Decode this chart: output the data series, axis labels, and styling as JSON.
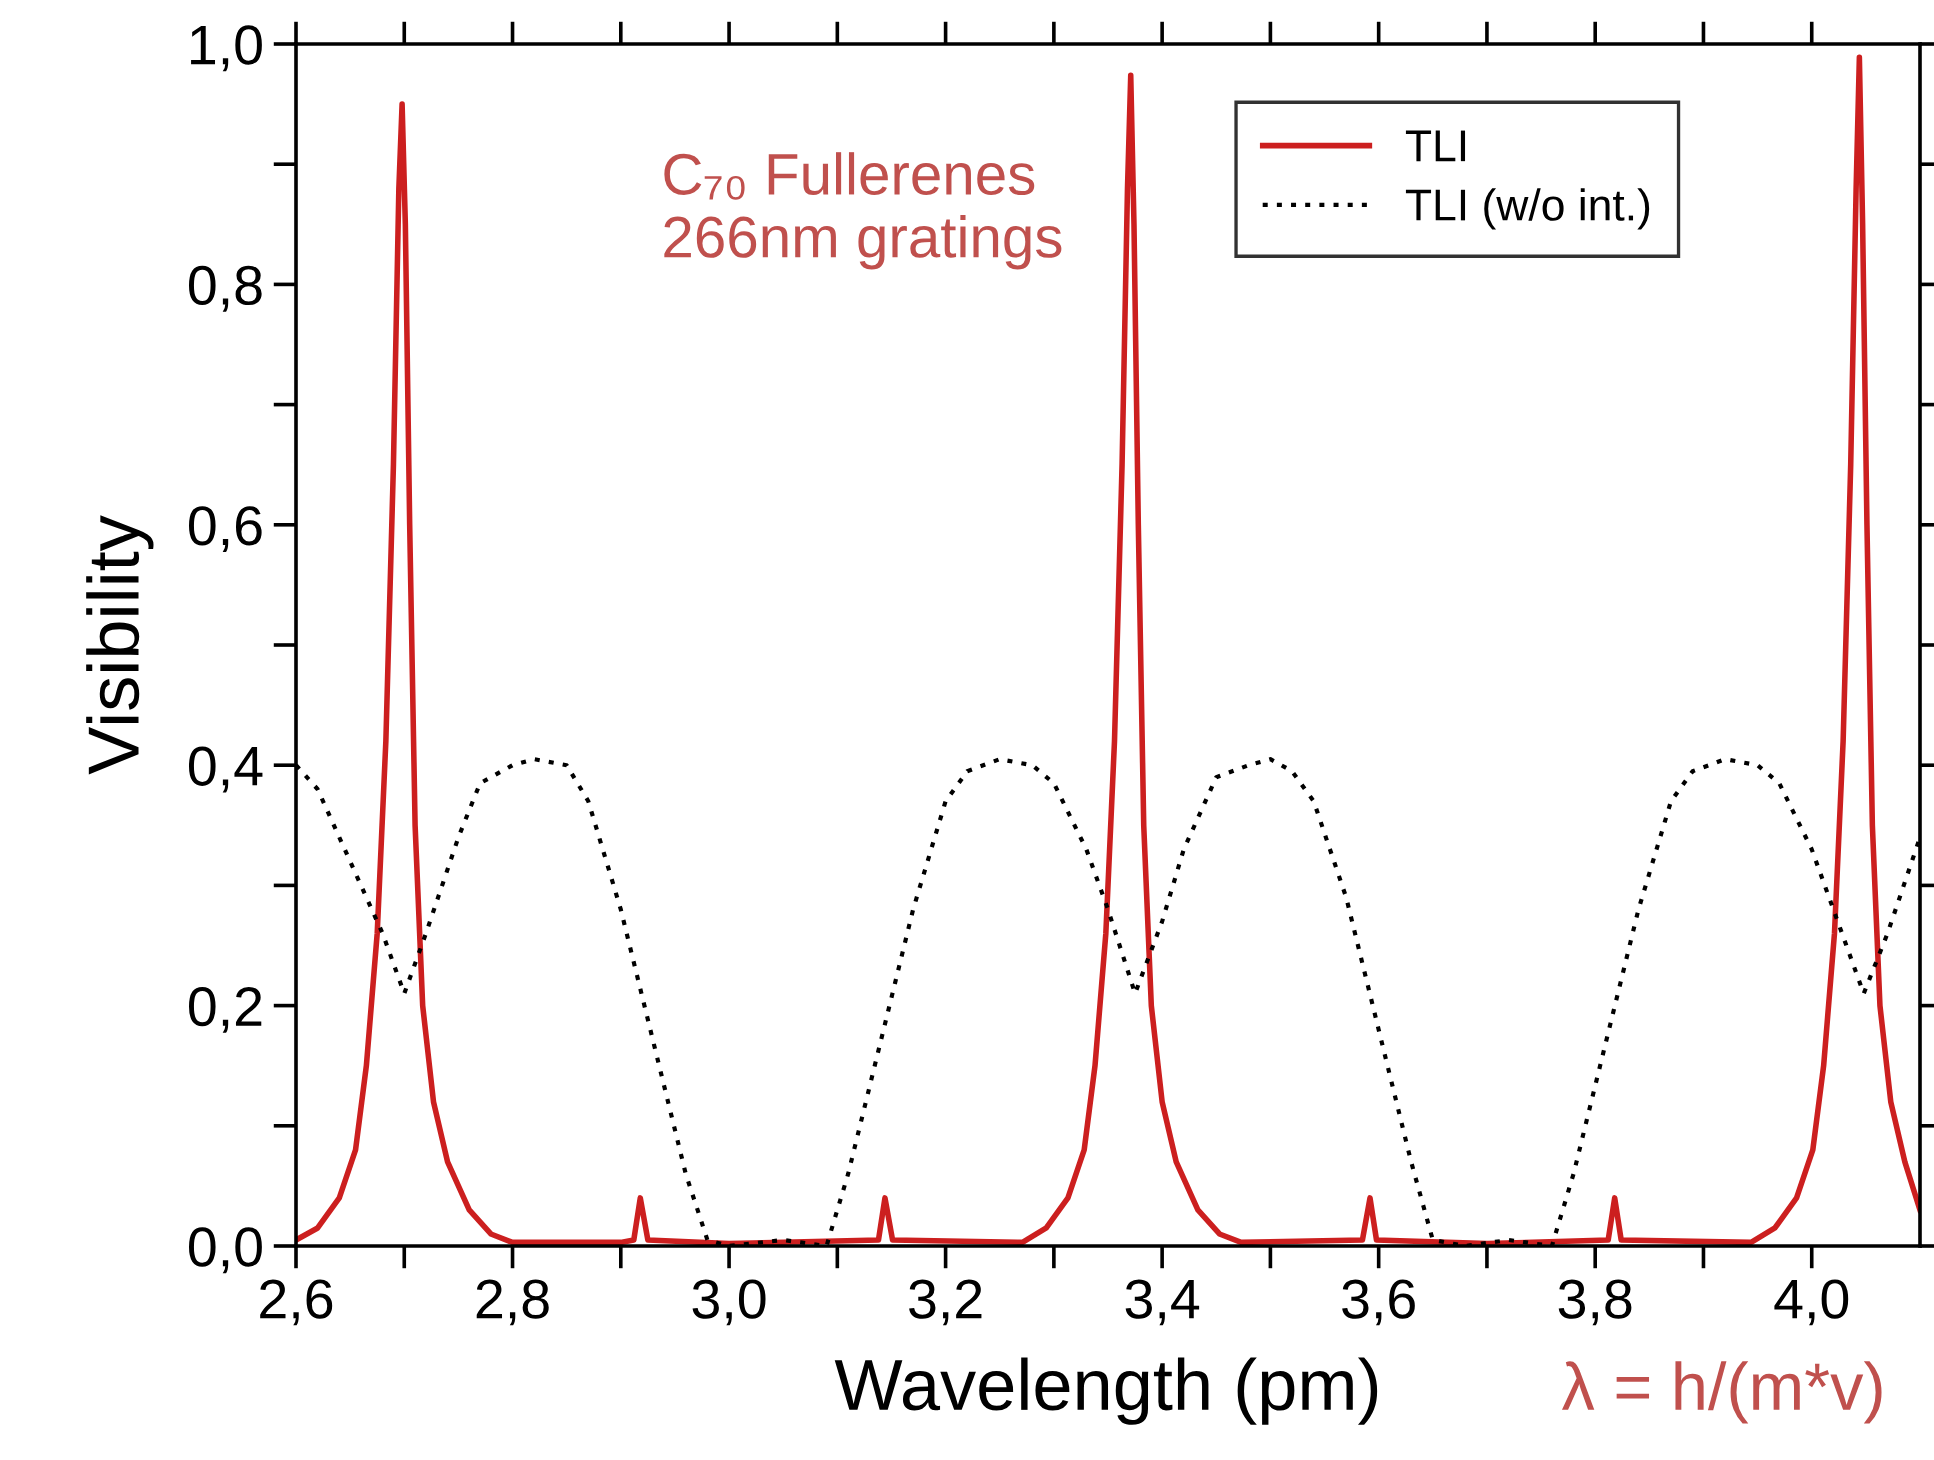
{
  "chart_data": {
    "type": "line",
    "xlabel": "Wavelength (pm)",
    "ylabel": "Visibility",
    "annotations": [
      "C₇₀ Fullerenes\n266nm gratings",
      "λ = h/(m*v)"
    ],
    "xlim": [
      2.6,
      4.1
    ],
    "ylim": [
      0,
      1.0
    ],
    "xticks": [
      {
        "value": 2.6,
        "label": "2,6"
      },
      {
        "value": 2.7,
        "label": null
      },
      {
        "value": 2.8,
        "label": "2,8"
      },
      {
        "value": 2.9,
        "label": null
      },
      {
        "value": 3.0,
        "label": "3,0"
      },
      {
        "value": 3.1,
        "label": null
      },
      {
        "value": 3.2,
        "label": "3,2"
      },
      {
        "value": 3.3,
        "label": null
      },
      {
        "value": 3.4,
        "label": "3,4"
      },
      {
        "value": 3.5,
        "label": null
      },
      {
        "value": 3.6,
        "label": "3,6"
      },
      {
        "value": 3.7,
        "label": null
      },
      {
        "value": 3.8,
        "label": "3,8"
      },
      {
        "value": 3.9,
        "label": null
      },
      {
        "value": 4.0,
        "label": "4,0"
      }
    ],
    "yticks": [
      {
        "value": 0.0,
        "label": "0,0"
      },
      {
        "value": 0.1,
        "label": null
      },
      {
        "value": 0.2,
        "label": "0,2"
      },
      {
        "value": 0.3,
        "label": null
      },
      {
        "value": 0.4,
        "label": "0,4"
      },
      {
        "value": 0.5,
        "label": null
      },
      {
        "value": 0.6,
        "label": "0,6"
      },
      {
        "value": 0.7,
        "label": null
      },
      {
        "value": 0.8,
        "label": "0,8"
      },
      {
        "value": 0.9,
        "label": null
      },
      {
        "value": 1.0,
        "label": "1,0"
      }
    ],
    "grid": false,
    "legend": "top right",
    "marker": "none",
    "series": [
      {
        "name": "TLI",
        "color": "#cc1f1f",
        "line_style": "solid",
        "x": [
          2.6,
          2.62,
          2.64,
          2.655,
          2.665,
          2.675,
          2.683,
          2.69,
          2.695,
          2.698,
          2.701,
          2.705,
          2.71,
          2.717,
          2.727,
          2.74,
          2.76,
          2.78,
          2.8,
          2.9,
          2.912,
          2.918,
          2.925,
          3.0,
          3.138,
          3.144,
          3.151,
          3.271,
          3.293,
          3.313,
          3.328,
          3.338,
          3.348,
          3.356,
          3.363,
          3.368,
          3.371,
          3.374,
          3.378,
          3.383,
          3.39,
          3.4,
          3.413,
          3.433,
          3.453,
          3.473,
          3.585,
          3.592,
          3.598,
          3.7,
          3.812,
          3.818,
          3.824,
          3.944,
          3.966,
          3.986,
          4.001,
          4.011,
          4.021,
          4.029,
          4.036,
          4.041,
          4.044,
          4.047,
          4.051,
          4.056,
          4.063,
          4.073,
          4.086,
          4.1
        ],
        "values": [
          0.005,
          0.015,
          0.04,
          0.08,
          0.15,
          0.26,
          0.42,
          0.65,
          0.88,
          0.95,
          0.85,
          0.6,
          0.35,
          0.2,
          0.12,
          0.07,
          0.03,
          0.01,
          0.003,
          0.003,
          0.005,
          0.04,
          0.005,
          0.002,
          0.005,
          0.04,
          0.005,
          0.003,
          0.015,
          0.04,
          0.08,
          0.15,
          0.26,
          0.42,
          0.65,
          0.88,
          0.974,
          0.85,
          0.6,
          0.35,
          0.2,
          0.12,
          0.07,
          0.03,
          0.01,
          0.003,
          0.005,
          0.04,
          0.005,
          0.002,
          0.005,
          0.04,
          0.005,
          0.003,
          0.015,
          0.04,
          0.08,
          0.15,
          0.26,
          0.42,
          0.65,
          0.88,
          0.989,
          0.85,
          0.6,
          0.35,
          0.2,
          0.12,
          0.07,
          0.03
        ]
      },
      {
        "name": "TLI (w/o int.)",
        "color": "#000000",
        "line_style": "dotted",
        "x": [
          2.6,
          2.62,
          2.65,
          2.68,
          2.7,
          2.72,
          2.75,
          2.77,
          2.8,
          2.82,
          2.85,
          2.87,
          2.9,
          2.93,
          2.96,
          2.98,
          3.0,
          3.05,
          3.09,
          3.11,
          3.14,
          3.17,
          3.2,
          3.22,
          3.25,
          3.28,
          3.3,
          3.33,
          3.35,
          3.375,
          3.4,
          3.42,
          3.45,
          3.48,
          3.5,
          3.52,
          3.54,
          3.57,
          3.6,
          3.63,
          3.65,
          3.68,
          3.72,
          3.76,
          3.78,
          3.81,
          3.84,
          3.87,
          3.89,
          3.92,
          3.95,
          3.97,
          4.0,
          4.02,
          4.048,
          4.07,
          4.1
        ],
        "values": [
          0.4,
          0.38,
          0.32,
          0.26,
          0.21,
          0.26,
          0.34,
          0.385,
          0.4,
          0.405,
          0.4,
          0.37,
          0.28,
          0.17,
          0.06,
          0.005,
          0.0,
          0.005,
          0.0,
          0.06,
          0.17,
          0.28,
          0.37,
          0.395,
          0.405,
          0.4,
          0.385,
          0.33,
          0.28,
          0.21,
          0.27,
          0.33,
          0.39,
          0.4,
          0.405,
          0.395,
          0.37,
          0.29,
          0.18,
          0.07,
          0.005,
          0.0,
          0.005,
          0.0,
          0.06,
          0.17,
          0.28,
          0.37,
          0.395,
          0.405,
          0.4,
          0.385,
          0.33,
          0.28,
          0.21,
          0.26,
          0.34
        ]
      }
    ]
  }
}
